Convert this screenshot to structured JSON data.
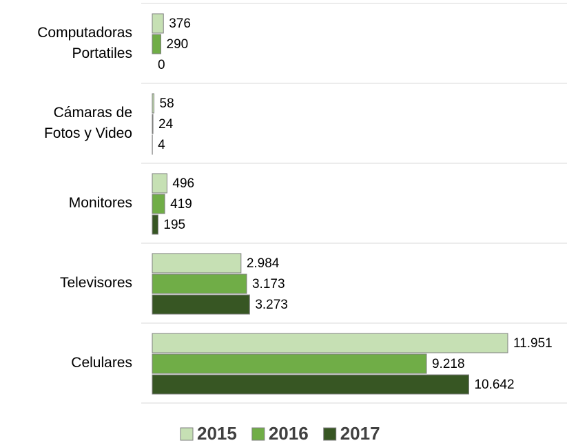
{
  "chart_data": {
    "type": "hbar",
    "categories": [
      "Computadoras\nPortatiles",
      "Cámaras de\nFotos y Video",
      "Monitores",
      "Televisores",
      "Celulares"
    ],
    "series": [
      {
        "name": "2015",
        "color": "#c6e0b4",
        "values": [
          376,
          58,
          496,
          2984,
          11951
        ],
        "value_labels": [
          "376",
          "58",
          "496",
          "2.984",
          "11.951"
        ]
      },
      {
        "name": "2016",
        "color": "#70ad47",
        "values": [
          290,
          24,
          419,
          3173,
          9218
        ],
        "value_labels": [
          "290",
          "24",
          "419",
          "3.173",
          "9.218"
        ]
      },
      {
        "name": "2017",
        "color": "#375623",
        "values": [
          0,
          4,
          195,
          3273,
          10642
        ],
        "value_labels": [
          "0",
          "4",
          "195",
          "3.273",
          "10.642"
        ]
      }
    ],
    "legend": "bottom"
  }
}
